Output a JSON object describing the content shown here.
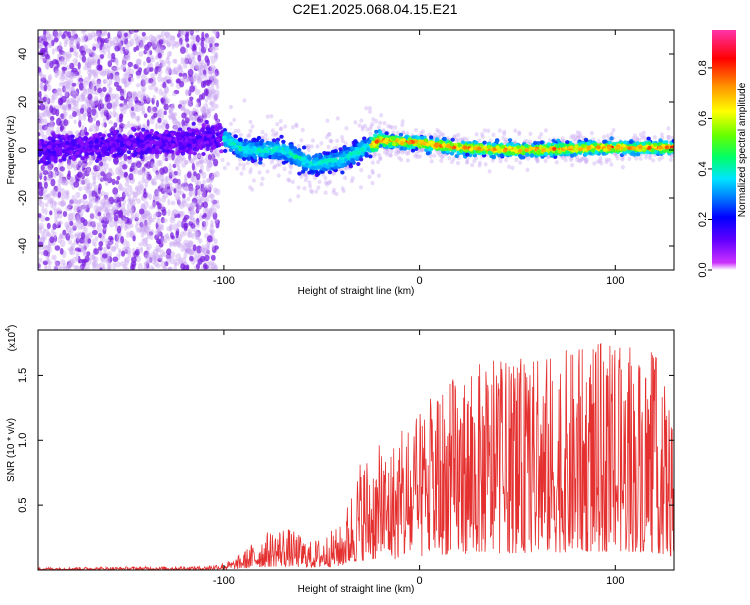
{
  "title": "C2E1.2025.068.04.15.E21",
  "colors": {
    "snr_line": "#e53030",
    "points_outer": "#c9a6f2",
    "points_mid": "#7a1fe0",
    "colormap": [
      "#cc33ff",
      "#6600ff",
      "#0000ff",
      "#0088ff",
      "#00e5ff",
      "#00ff66",
      "#66ff00",
      "#ffff00",
      "#ff9900",
      "#ff0000",
      "#ff33aa"
    ]
  },
  "chart_data": [
    {
      "type": "scatter",
      "description": "spectrogram-like scatter",
      "xlabel": "Height of straight line (km)",
      "ylabel": "Frequency (Hz)",
      "xlim": [
        -195,
        130
      ],
      "ylim": [
        -50,
        50
      ],
      "x_ticks": [
        -100,
        0,
        100
      ],
      "y_ticks": [
        -40,
        -20,
        0,
        20,
        40
      ],
      "colorbar": {
        "label": "Normalized spectral amplitude",
        "range": [
          0,
          0.95
        ],
        "ticks": [
          0.0,
          0.2,
          0.4,
          0.6,
          0.8
        ]
      },
      "ridge_center_hz": [
        {
          "x": -195,
          "y": 0
        },
        {
          "x": -100,
          "y": 5
        },
        {
          "x": -90,
          "y": 0
        },
        {
          "x": -70,
          "y": 0
        },
        {
          "x": -55,
          "y": -6
        },
        {
          "x": -40,
          "y": -4
        },
        {
          "x": -20,
          "y": 4
        },
        {
          "x": 0,
          "y": 3
        },
        {
          "x": 20,
          "y": 1
        },
        {
          "x": 50,
          "y": 0
        },
        {
          "x": 100,
          "y": 1
        },
        {
          "x": 130,
          "y": 1
        }
      ]
    },
    {
      "type": "line",
      "xlabel": "Height of straight line (km)",
      "ylabel": "SNR (10 * v/v)",
      "y_scale_label": "(x10",
      "y_scale_exp": "4",
      "y_scale_close": ")",
      "xlim": [
        -195,
        130
      ],
      "ylim": [
        0,
        1.85
      ],
      "x_ticks": [
        -100,
        0,
        100
      ],
      "y_ticks": [
        0.5,
        1.0,
        1.5
      ],
      "envelope": [
        {
          "x": -195,
          "y": 0.02
        },
        {
          "x": -110,
          "y": 0.03
        },
        {
          "x": -95,
          "y": 0.08
        },
        {
          "x": -80,
          "y": 0.28
        },
        {
          "x": -70,
          "y": 0.35
        },
        {
          "x": -55,
          "y": 0.22
        },
        {
          "x": -40,
          "y": 0.35
        },
        {
          "x": -30,
          "y": 0.9
        },
        {
          "x": -15,
          "y": 1.0
        },
        {
          "x": 0,
          "y": 1.2
        },
        {
          "x": 10,
          "y": 1.45
        },
        {
          "x": 30,
          "y": 1.6
        },
        {
          "x": 60,
          "y": 1.65
        },
        {
          "x": 90,
          "y": 1.75
        },
        {
          "x": 120,
          "y": 1.7
        },
        {
          "x": 130,
          "y": 1.2
        }
      ]
    }
  ]
}
